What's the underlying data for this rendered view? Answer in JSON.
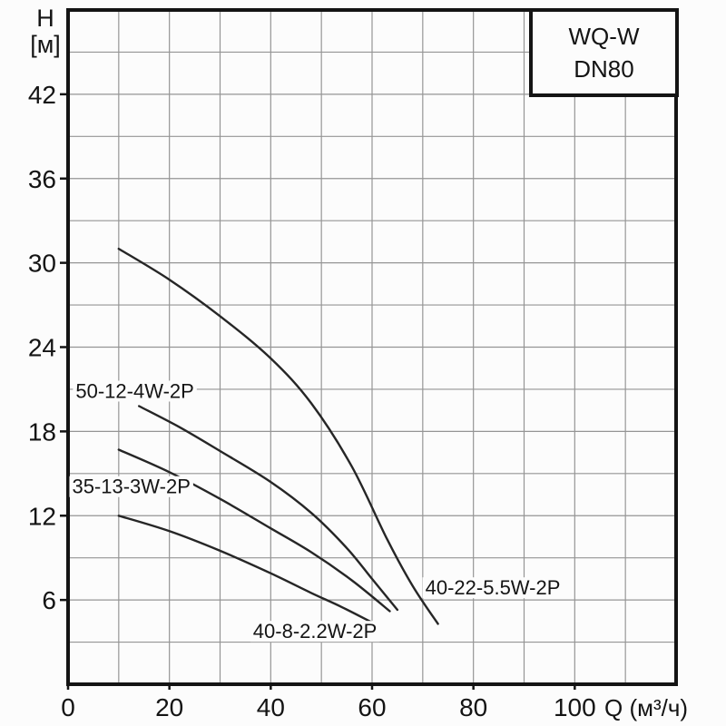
{
  "title_box": {
    "line1": "WQ-W",
    "line2": "DN80"
  },
  "y_axis": {
    "title_line1": "H",
    "title_line2": "[м]"
  },
  "x_axis": {
    "title": "Q (м³/ч)"
  },
  "chart_data": {
    "type": "line",
    "title": "WQ-W DN80 pump head–flow performance curves",
    "xlabel": "Q (м³/ч)",
    "ylabel": "H [м]",
    "xlim": [
      0,
      120
    ],
    "ylim": [
      0,
      48
    ],
    "grid": true,
    "x_grid_step": 10,
    "y_grid_step": 3,
    "x_tick_labels": [
      0,
      20,
      40,
      60,
      80,
      100
    ],
    "y_tick_labels": [
      6,
      12,
      18,
      24,
      30,
      36,
      42
    ],
    "legend_position": "inline-labels",
    "series": [
      {
        "name": "40-22-5.5W-2P",
        "points": [
          [
            10,
            31
          ],
          [
            20,
            28.8
          ],
          [
            30,
            26.2
          ],
          [
            40,
            23.2
          ],
          [
            48,
            20
          ],
          [
            56,
            15.5
          ],
          [
            63,
            10.3
          ],
          [
            68,
            7
          ],
          [
            73,
            4.3
          ]
        ],
        "label_pos": [
          70.5,
          6.9
        ],
        "label_anchor": "start"
      },
      {
        "name": "50-12-4W-2P",
        "points": [
          [
            14,
            19.8
          ],
          [
            22,
            18.3
          ],
          [
            30,
            16.6
          ],
          [
            40,
            14.4
          ],
          [
            48,
            12.2
          ],
          [
            55,
            9.7
          ],
          [
            60,
            7.5
          ],
          [
            65,
            5.3
          ]
        ],
        "label_pos": [
          1.5,
          20.9
        ],
        "label_anchor": "start"
      },
      {
        "name": "35-13-3W-2P",
        "points": [
          [
            10,
            16.7
          ],
          [
            20,
            15.1
          ],
          [
            30,
            13.2
          ],
          [
            40,
            11.1
          ],
          [
            48,
            9.4
          ],
          [
            56,
            7.4
          ],
          [
            63.5,
            5.2
          ]
        ],
        "label_pos": [
          0.8,
          14.1
        ],
        "label_anchor": "start"
      },
      {
        "name": "40-8-2.2W-2P",
        "points": [
          [
            10,
            12
          ],
          [
            20,
            10.9
          ],
          [
            30,
            9.5
          ],
          [
            40,
            7.9
          ],
          [
            48,
            6.5
          ],
          [
            54,
            5.5
          ],
          [
            60,
            4.4
          ]
        ],
        "label_pos": [
          36.5,
          3.8
        ],
        "label_anchor": "start"
      }
    ],
    "colors": {
      "curve": "#262626",
      "grid": "#959595",
      "frame": "#141414",
      "text": "#141414",
      "background": "#fcfcfc"
    }
  }
}
